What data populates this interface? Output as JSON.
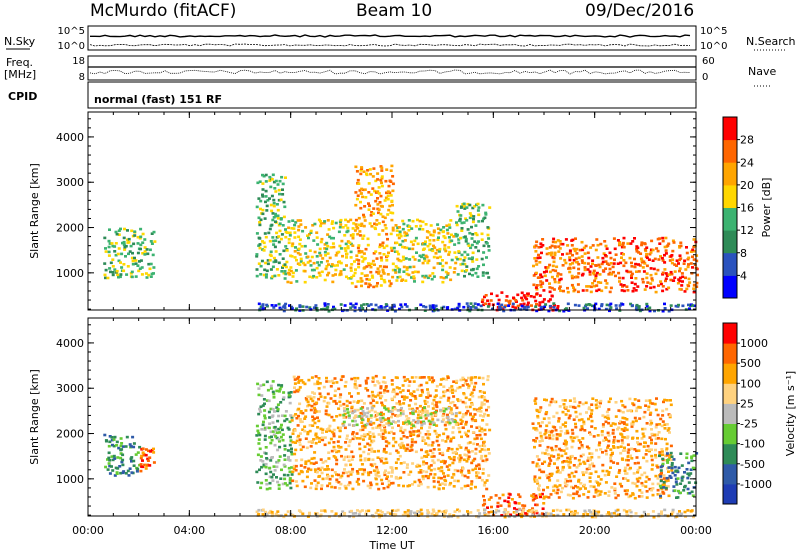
{
  "header": {
    "station": "McMurdo (fitACF)",
    "beam": "Beam 10",
    "date": "09/Dec/2016"
  },
  "sidebar_labels": {
    "nsky": "N.Sky",
    "freq_line1": "Freq.",
    "freq_line2": "[MHz]",
    "cpid": "CPID",
    "nsearch": "N.Search",
    "nave": "Nave"
  },
  "meta_panels": {
    "nsky_ticks": [
      "10^5",
      "10^0"
    ],
    "nsearch_ticks": [
      "10^5",
      "10^0"
    ],
    "freq_ticks": [
      "18",
      "8"
    ],
    "nave_ticks": [
      "60",
      "0"
    ],
    "cpid_text": "normal (fast) 151 RF"
  },
  "chart_data": [
    {
      "type": "heatmap",
      "name": "power",
      "ylabel": "Slant Range [km]",
      "xlabel": "Time UT",
      "x_range_hours": [
        0,
        24
      ],
      "ylim": [
        180,
        4550
      ],
      "y_ticks": [
        "1000",
        "2000",
        "3000",
        "4000"
      ],
      "x_ticks": [
        "00:00",
        "04:00",
        "08:00",
        "12:00",
        "16:00",
        "20:00",
        "00:00"
      ],
      "colorbar": {
        "label": "Power [dB]",
        "ticks": [
          "4",
          "8",
          "12",
          "16",
          "20",
          "24",
          "28"
        ],
        "colors": [
          "#0000ff",
          "#2a52be",
          "#2e8b57",
          "#3cb371",
          "#ffd700",
          "#ffa500",
          "#ff6600",
          "#ff0000"
        ]
      },
      "echo_regions": [
        {
          "t0": 0.6,
          "t1": 2.6,
          "r0": 900,
          "r1": 2000,
          "level": 3
        },
        {
          "t0": 6.6,
          "t1": 7.8,
          "r0": 900,
          "r1": 3200,
          "level": 3
        },
        {
          "t0": 7.8,
          "t1": 10.5,
          "r0": 800,
          "r1": 2200,
          "level": 4
        },
        {
          "t0": 10.5,
          "t1": 12.0,
          "r0": 700,
          "r1": 3400,
          "level": 5
        },
        {
          "t0": 12.0,
          "t1": 14.5,
          "r0": 800,
          "r1": 2200,
          "level": 4
        },
        {
          "t0": 14.5,
          "t1": 15.8,
          "r0": 900,
          "r1": 2600,
          "level": 3
        },
        {
          "t0": 15.5,
          "t1": 18.5,
          "r0": 200,
          "r1": 600,
          "level": 7
        },
        {
          "t0": 17.5,
          "t1": 24.0,
          "r0": 600,
          "r1": 1800,
          "level": 6
        },
        {
          "t0": 6.6,
          "t1": 24.0,
          "r0": 180,
          "r1": 350,
          "level": 1
        }
      ]
    },
    {
      "type": "heatmap",
      "name": "velocity",
      "ylabel": "Slant Range [km]",
      "xlabel": "Time UT",
      "x_range_hours": [
        0,
        24
      ],
      "ylim": [
        180,
        4550
      ],
      "y_ticks": [
        "1000",
        "2000",
        "3000",
        "4000"
      ],
      "x_ticks": [
        "00:00",
        "04:00",
        "08:00",
        "12:00",
        "16:00",
        "20:00",
        "00:00"
      ],
      "colorbar": {
        "label": "Velocity [m s⁻¹]",
        "ticks": [
          "1000",
          "500",
          "100",
          "25",
          "-25",
          "-100",
          "-500",
          "-1000"
        ],
        "colors": [
          "#1e3cb4",
          "#2e5aa8",
          "#2e8b57",
          "#66cc33",
          "#bbbbbb",
          "#ffd27f",
          "#ffa500",
          "#ff6600",
          "#ff0000"
        ]
      },
      "echo_regions": [
        {
          "t0": 0.6,
          "t1": 2.0,
          "r0": 1100,
          "r1": 2000,
          "level": 2
        },
        {
          "t0": 2.0,
          "t1": 2.6,
          "r0": 1200,
          "r1": 1700,
          "level": 7
        },
        {
          "t0": 6.6,
          "t1": 8.0,
          "r0": 800,
          "r1": 3200,
          "level": 3
        },
        {
          "t0": 8.0,
          "t1": 15.8,
          "r0": 800,
          "r1": 3300,
          "level": 6
        },
        {
          "t0": 10.0,
          "t1": 14.5,
          "r0": 2200,
          "r1": 2600,
          "level": 4
        },
        {
          "t0": 15.5,
          "t1": 18.0,
          "r0": 200,
          "r1": 700,
          "level": 7
        },
        {
          "t0": 17.5,
          "t1": 23.0,
          "r0": 600,
          "r1": 2800,
          "level": 6
        },
        {
          "t0": 22.5,
          "t1": 24.0,
          "r0": 600,
          "r1": 1600,
          "level": 2
        },
        {
          "t0": 6.6,
          "t1": 24.0,
          "r0": 180,
          "r1": 350,
          "level": 5
        }
      ]
    }
  ]
}
